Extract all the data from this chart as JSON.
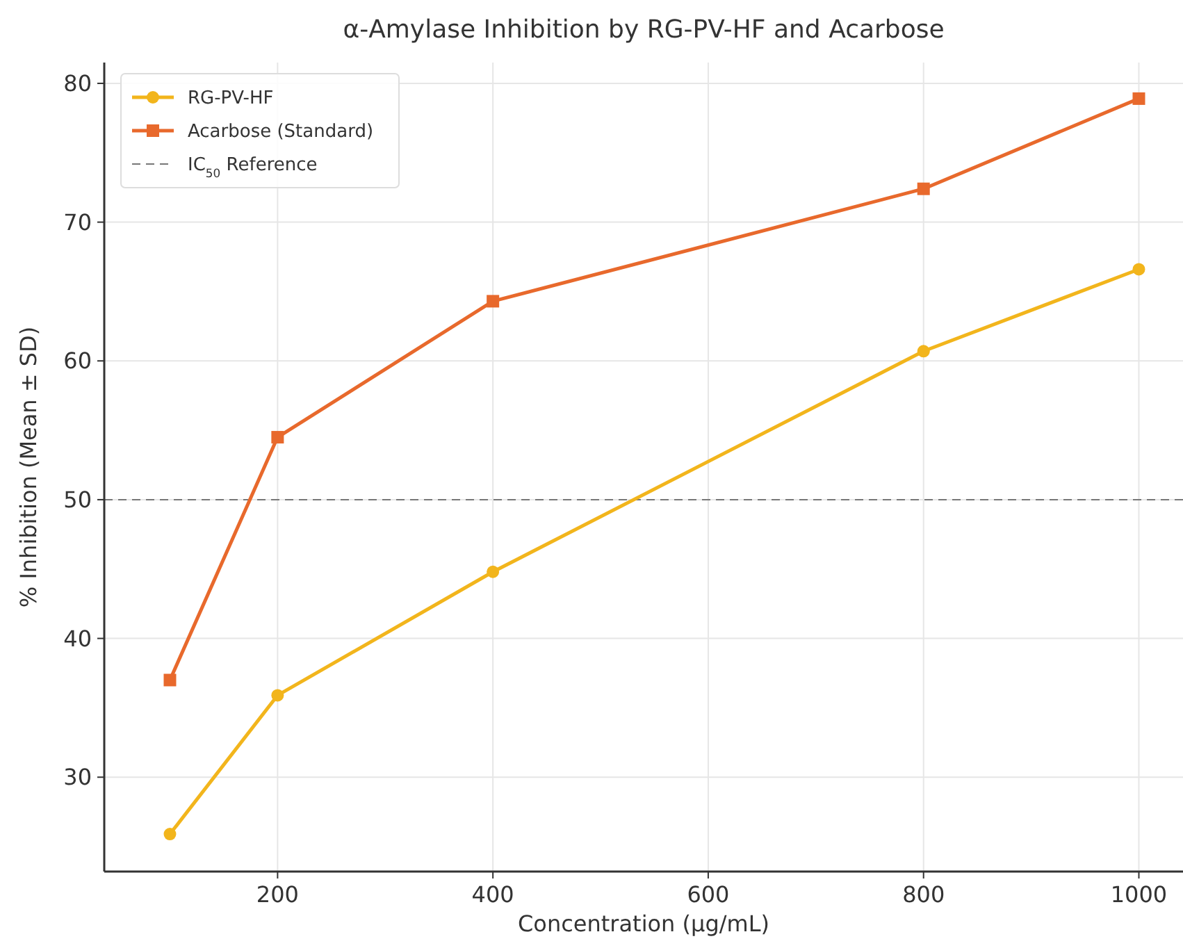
{
  "chart_data": {
    "type": "line",
    "title": "α-Amylase Inhibition by RG-PV-HF and Acarbose",
    "xlabel": "Concentration (µg/mL)",
    "ylabel": "% Inhibition (Mean ± SD)",
    "x": [
      100,
      200,
      400,
      800,
      1000
    ],
    "series": [
      {
        "name": "RG-PV-HF",
        "color": "#f2b51c",
        "marker": "circle",
        "values": [
          25.9,
          35.9,
          44.8,
          60.7,
          66.6
        ]
      },
      {
        "name": "Acarbose (Standard)",
        "color": "#e8692c",
        "marker": "square",
        "values": [
          37.0,
          54.5,
          64.3,
          72.4,
          78.9
        ]
      }
    ],
    "ref_lines": [
      {
        "axis": "y",
        "value": 50,
        "label": "IC$_{50}$ Reference",
        "color": "#777777",
        "line_style": "dashed"
      }
    ],
    "xlim": [
      39,
      1041
    ],
    "xticks": [
      200,
      400,
      600,
      800,
      1000
    ],
    "ylim": [
      23.2,
      81.5
    ],
    "yticks": [
      30,
      40,
      50,
      60,
      70,
      80
    ],
    "grid": true,
    "legend": "top left"
  }
}
